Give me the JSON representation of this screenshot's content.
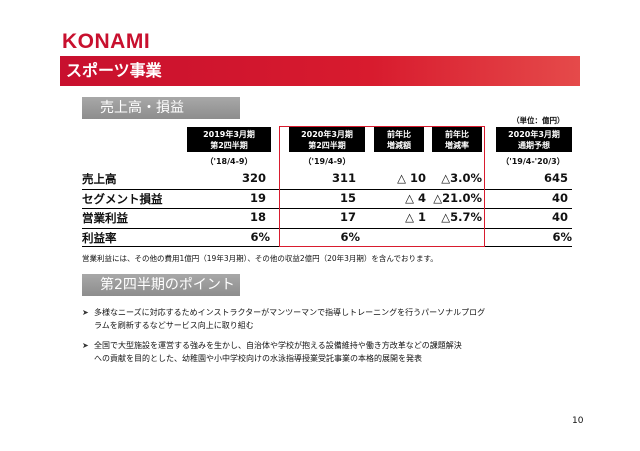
{
  "logo": "KONAMI",
  "title": "スポーツ事業",
  "section1": "売上高・損益",
  "section2": "第2四半期のポイント",
  "unit": "（単位：億円）",
  "headers": {
    "prev": [
      "2019年3月期",
      "第2四半期"
    ],
    "curr": [
      "2020年3月期",
      "第2四半期"
    ],
    "diff": [
      "前年比",
      "増減額"
    ],
    "rate": [
      "前年比",
      "増減率"
    ],
    "forecast": [
      "2020年3月期",
      "通期予想"
    ]
  },
  "subheaders": {
    "prev": "（'18/4-9）",
    "curr": "（'19/4-9）",
    "forecast": "（'19/4-'20/3）"
  },
  "rows": [
    {
      "label": "売上高",
      "prev": "320",
      "curr": "311",
      "diff": "△ 10",
      "rate": "△3.0%",
      "forecast": "645"
    },
    {
      "label": "セグメント損益",
      "prev": "19",
      "curr": "15",
      "diff": "△ 4",
      "rate": "△21.0%",
      "forecast": "40"
    },
    {
      "label": "営業利益",
      "prev": "18",
      "curr": "17",
      "diff": "△ 1",
      "rate": "△5.7%",
      "forecast": "40"
    },
    {
      "label": "利益率",
      "prev": "6%",
      "curr": "6%",
      "diff": "",
      "rate": "",
      "forecast": "6%"
    }
  ],
  "note": "営業利益には、その他の費用1億円（19年3月期）、その他の収益2億円（20年3月期）を含んでおります。",
  "bullets": [
    {
      "line1": "多様なニーズに対応するためインストラクターがマンツーマンで指導しトレーニングを行うパーソナルプログ",
      "line2": "ラムを刷新するなどサービス向上に取り組む"
    },
    {
      "line1": "全国で大型施設を運営する強みを生かし、自治体や学校が抱える設備維持や働き方改革などの課題解決",
      "line2": "への貢献を目的とした、幼稚園や小中学校向けの水泳指導授業受託事業の本格的展開を発表"
    }
  ],
  "page_number": "10"
}
